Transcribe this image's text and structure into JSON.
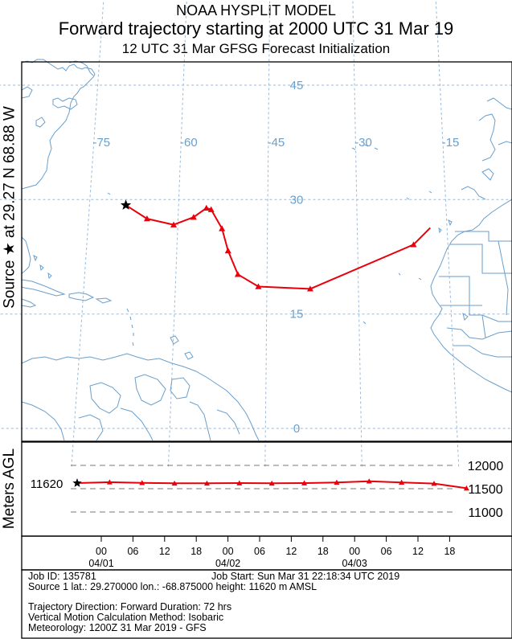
{
  "header": {
    "line1": "NOAA HYSPLIT MODEL",
    "line2": "Forward trajectory starting at 2000 UTC 31 Mar 19",
    "line3": "12 UTC 31 Mar    GFSG  Forecast Initialization"
  },
  "side_label": "Source ★ at   29.27 N   68.88 W",
  "agl_label": "Meters AGL",
  "colors": {
    "trajectory": "#e8000b",
    "map_lines": "#6a9fcb",
    "grid": "#9bbad6",
    "lat_lon_labels": "#6a9fcb",
    "height_grid": "#777777"
  },
  "map": {
    "lon_labels": [
      "-75",
      "-60",
      "-45",
      "-30",
      "-15"
    ],
    "lat_labels": [
      "45",
      "30",
      "15",
      "0"
    ]
  },
  "chart_data": [
    {
      "type": "line",
      "title": "Forward trajectory starting at 2000 UTC 31 Mar 19",
      "xlabel": "",
      "ylabel": "",
      "series": [
        {
          "name": "",
          "lon": [
            -68.88,
            -65.2,
            -60.7,
            -57.4,
            -55.3,
            -54.5,
            -52.6,
            -51.5,
            -49.8,
            -46.4,
            -37.9,
            -20.7,
            -17.8
          ],
          "lat": [
            29.27,
            27.5,
            26.7,
            27.7,
            28.9,
            28.7,
            26.2,
            23.3,
            20.2,
            18.6,
            18.3,
            24.1,
            26.3
          ]
        }
      ]
    },
    {
      "type": "line",
      "ylabel": "Meters AGL",
      "start_label": "11620",
      "yticks": [
        "12000",
        "11500",
        "11000"
      ],
      "ylim": [
        11000,
        12000
      ],
      "x_ticks": [
        "00",
        "06",
        "12",
        "18",
        "00",
        "06",
        "12",
        "18",
        "00",
        "06",
        "12",
        "18"
      ],
      "x_dates": [
        "04/01",
        "04/02",
        "04/03"
      ],
      "series": [
        {
          "name": "",
          "hours": [
            0,
            6,
            12,
            18,
            24,
            30,
            36,
            42,
            48,
            54,
            60,
            66,
            72
          ],
          "values": [
            11620,
            11640,
            11625,
            11615,
            11615,
            11620,
            11615,
            11620,
            11635,
            11660,
            11635,
            11610,
            11510
          ]
        }
      ]
    }
  ],
  "info": {
    "job_id": "Job ID: 135781",
    "job_start": "Job Start: Sun Mar 31 22:18:34 UTC 2019",
    "source": "Source 1     lat.: 29.270000    lon.: -68.875000     height: 11620 m AMSL",
    "direction": "Trajectory Direction: Forward      Duration: 72 hrs",
    "vertical": "Vertical Motion Calculation Method:        Isobaric",
    "meteorology": "Meteorology: 1200Z 31 Mar 2019 - GFS"
  }
}
